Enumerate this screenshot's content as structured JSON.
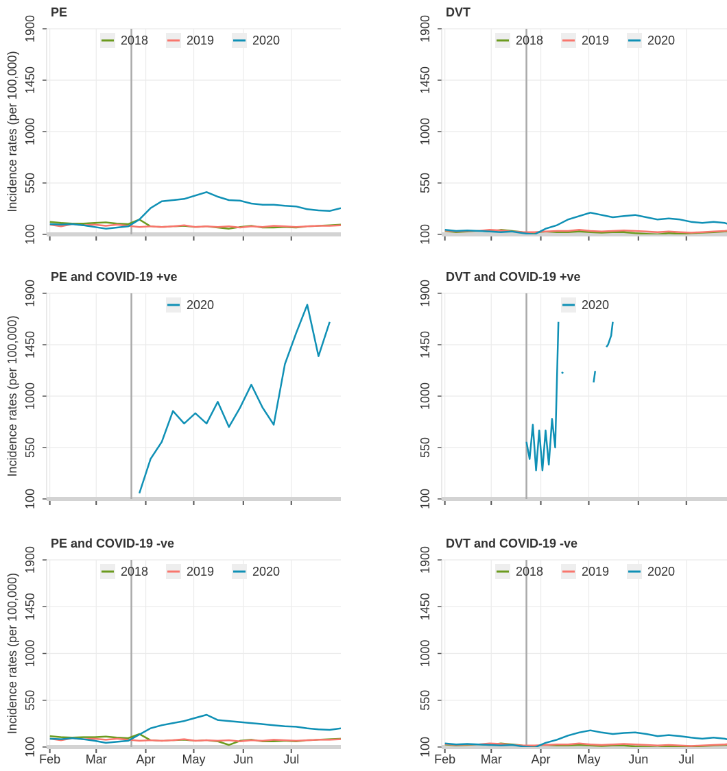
{
  "chart_data": [
    {
      "type": "line",
      "title": "PE",
      "ylabel": "Incidence rates (per 100,000)",
      "x": [
        0,
        7,
        14,
        21,
        28,
        35,
        42,
        49,
        56,
        63,
        70,
        77,
        84,
        91,
        98,
        105,
        112,
        119,
        126,
        133,
        140,
        147,
        154,
        161,
        168,
        175,
        182
      ],
      "series": [
        {
          "name": "2018",
          "color": "#6b9a1e",
          "values": [
            210,
            200,
            195,
            195,
            200,
            205,
            195,
            190,
            230,
            170,
            165,
            170,
            175,
            165,
            170,
            160,
            150,
            165,
            175,
            160,
            160,
            165,
            160,
            170,
            175,
            180,
            185
          ]
        },
        {
          "name": "2019",
          "color": "#f8766d",
          "values": [
            185,
            170,
            190,
            180,
            185,
            175,
            185,
            175,
            165,
            170,
            165,
            170,
            180,
            165,
            170,
            165,
            170,
            160,
            170,
            165,
            175,
            170,
            165,
            170,
            175,
            175,
            180
          ]
        },
        {
          "name": "2020",
          "color": "#0f90b5",
          "values": [
            190,
            185,
            190,
            180,
            165,
            150,
            160,
            170,
            230,
            330,
            390,
            400,
            410,
            440,
            470,
            430,
            400,
            395,
            370,
            360,
            360,
            350,
            345,
            320,
            310,
            305,
            330
          ]
        }
      ],
      "xlim": [
        -2,
        182
      ],
      "xticks": [
        0,
        29,
        60,
        90,
        121,
        151
      ],
      "ylim": [
        100,
        1900
      ],
      "yticks": [
        100,
        550,
        1000,
        1450,
        1900
      ],
      "vline": 51,
      "grid": true,
      "legend": "top"
    },
    {
      "type": "line",
      "title": "DVT",
      "x": [
        0,
        7,
        14,
        21,
        28,
        35,
        42,
        49,
        56,
        63,
        70,
        77,
        84,
        91,
        98,
        105,
        112,
        119,
        126,
        133,
        140,
        147,
        154,
        161,
        168,
        175,
        182
      ],
      "series": [
        {
          "name": "2018",
          "color": "#6b9a1e",
          "values": [
            130,
            120,
            125,
            130,
            125,
            140,
            130,
            120,
            115,
            125,
            120,
            120,
            125,
            120,
            115,
            120,
            120,
            110,
            105,
            100,
            110,
            105,
            110,
            115,
            120,
            125,
            130
          ]
        },
        {
          "name": "2019",
          "color": "#f8766d",
          "values": [
            135,
            125,
            130,
            130,
            140,
            135,
            125,
            120,
            120,
            125,
            130,
            130,
            140,
            130,
            125,
            130,
            135,
            130,
            125,
            120,
            125,
            120,
            115,
            120,
            125,
            130,
            140
          ]
        },
        {
          "name": "2020",
          "color": "#0f90b5",
          "values": [
            140,
            130,
            135,
            130,
            125,
            120,
            125,
            110,
            100,
            150,
            180,
            230,
            260,
            290,
            270,
            250,
            260,
            270,
            250,
            230,
            240,
            230,
            210,
            200,
            210,
            200,
            170
          ]
        }
      ],
      "xlim": [
        -2,
        182
      ],
      "xticks": [
        0,
        29,
        60,
        90,
        121,
        151
      ],
      "ylim": [
        100,
        1900
      ],
      "yticks": [
        100,
        550,
        1000,
        1450,
        1900
      ],
      "vline": 51,
      "grid": true,
      "legend": "top"
    },
    {
      "type": "line",
      "title": "PE and COVID-19 +ve",
      "ylabel": "Incidence rates (per 100,000)",
      "x": [
        0,
        7,
        14,
        21,
        28,
        35,
        42,
        49,
        56,
        63,
        70,
        77,
        84,
        91,
        98,
        105,
        112,
        119,
        126,
        133,
        140,
        147,
        154,
        161,
        168,
        175,
        182
      ],
      "series": [
        {
          "name": "2020",
          "color": "#0f90b5",
          "values": [
            null,
            null,
            null,
            null,
            null,
            null,
            null,
            null,
            150,
            450,
            600,
            870,
            760,
            850,
            760,
            950,
            730,
            900,
            1100,
            900,
            750,
            1280,
            1550,
            1800,
            1350,
            1650,
            null
          ]
        }
      ],
      "xlim": [
        -2,
        182
      ],
      "xticks": [
        0,
        29,
        60,
        90,
        121,
        151
      ],
      "ylim": [
        100,
        1900
      ],
      "yticks": [
        100,
        550,
        1000,
        1450,
        1900
      ],
      "vline": 51,
      "grid": true,
      "legend": "top"
    },
    {
      "type": "line",
      "title": "DVT and COVID-19 +ve",
      "x": [
        51,
        53,
        55,
        57,
        59,
        61,
        63,
        65,
        67,
        69,
        71,
        72,
        73,
        74,
        75,
        93,
        94,
        95,
        101,
        102,
        104,
        105
      ],
      "series": [
        {
          "name": "2020",
          "color": "#0f90b5",
          "values": [
            600,
            450,
            750,
            350,
            700,
            350,
            700,
            400,
            800,
            550,
            1650,
            null,
            1210,
            1200,
            null,
            1120,
            1220,
            null,
            1430,
            1450,
            1530,
            1650
          ]
        }
      ],
      "xlim": [
        -2,
        182
      ],
      "xticks": [
        0,
        29,
        60,
        90,
        121,
        151
      ],
      "ylim": [
        100,
        1900
      ],
      "yticks": [
        100,
        550,
        1000,
        1450,
        1900
      ],
      "vline": 51,
      "grid": true,
      "legend": "top"
    },
    {
      "type": "line",
      "title": "PE and COVID-19 -ve",
      "ylabel": "Incidence rates (per 100,000)",
      "x": [
        0,
        7,
        14,
        21,
        28,
        35,
        42,
        49,
        56,
        63,
        70,
        77,
        84,
        91,
        98,
        105,
        112,
        119,
        126,
        133,
        140,
        147,
        154,
        161,
        168,
        175,
        182
      ],
      "series": [
        {
          "name": "2018",
          "color": "#6b9a1e",
          "values": [
            205,
            195,
            190,
            195,
            195,
            200,
            190,
            185,
            225,
            165,
            160,
            165,
            170,
            160,
            165,
            155,
            120,
            160,
            170,
            155,
            155,
            160,
            155,
            165,
            170,
            175,
            180
          ]
        },
        {
          "name": "2019",
          "color": "#f8766d",
          "values": [
            180,
            165,
            185,
            175,
            180,
            170,
            180,
            170,
            160,
            165,
            160,
            165,
            175,
            160,
            165,
            160,
            165,
            155,
            165,
            160,
            170,
            165,
            160,
            165,
            170,
            170,
            175
          ]
        },
        {
          "name": "2020",
          "color": "#0f90b5",
          "values": [
            180,
            175,
            185,
            175,
            160,
            140,
            150,
            160,
            220,
            280,
            310,
            330,
            350,
            380,
            410,
            360,
            350,
            340,
            330,
            320,
            310,
            300,
            295,
            280,
            270,
            265,
            280
          ]
        }
      ],
      "xlim": [
        -2,
        182
      ],
      "xticks": [
        {
          "value": 0,
          "label": "Feb"
        },
        {
          "value": 29,
          "label": "Mar"
        },
        {
          "value": 60,
          "label": "Apr"
        },
        {
          "value": 90,
          "label": "May"
        },
        {
          "value": 121,
          "label": "Jun"
        },
        {
          "value": 151,
          "label": "Jul"
        }
      ],
      "ylim": [
        100,
        1900
      ],
      "yticks": [
        100,
        550,
        1000,
        1450,
        1900
      ],
      "vline": 51,
      "grid": true,
      "legend": "top"
    },
    {
      "type": "line",
      "title": "DVT and COVID-19 -ve",
      "x": [
        0,
        7,
        14,
        21,
        28,
        35,
        42,
        49,
        56,
        63,
        70,
        77,
        84,
        91,
        98,
        105,
        112,
        119,
        126,
        133,
        140,
        147,
        154,
        161,
        168,
        175,
        182
      ],
      "series": [
        {
          "name": "2018",
          "color": "#6b9a1e",
          "values": [
            125,
            115,
            120,
            125,
            120,
            135,
            125,
            115,
            110,
            120,
            115,
            115,
            120,
            115,
            110,
            115,
            115,
            105,
            100,
            95,
            105,
            100,
            105,
            110,
            115,
            120,
            125
          ]
        },
        {
          "name": "2019",
          "color": "#f8766d",
          "values": [
            130,
            120,
            125,
            125,
            135,
            130,
            120,
            115,
            115,
            120,
            125,
            125,
            135,
            125,
            120,
            125,
            130,
            125,
            120,
            115,
            120,
            115,
            110,
            115,
            120,
            125,
            135
          ]
        },
        {
          "name": "2020",
          "color": "#0f90b5",
          "values": [
            135,
            125,
            130,
            125,
            120,
            115,
            120,
            105,
            95,
            140,
            170,
            210,
            240,
            260,
            240,
            225,
            235,
            240,
            225,
            205,
            215,
            205,
            190,
            180,
            190,
            180,
            155
          ]
        }
      ],
      "xlim": [
        -2,
        182
      ],
      "xticks": [
        {
          "value": 0,
          "label": "Feb"
        },
        {
          "value": 29,
          "label": "Mar"
        },
        {
          "value": 60,
          "label": "Apr"
        },
        {
          "value": 90,
          "label": "May"
        },
        {
          "value": 121,
          "label": "Jun"
        },
        {
          "value": 151,
          "label": "Jul"
        }
      ],
      "ylim": [
        100,
        1900
      ],
      "yticks": [
        100,
        550,
        1000,
        1450,
        1900
      ],
      "vline": 51,
      "grid": true,
      "legend": "top"
    }
  ]
}
